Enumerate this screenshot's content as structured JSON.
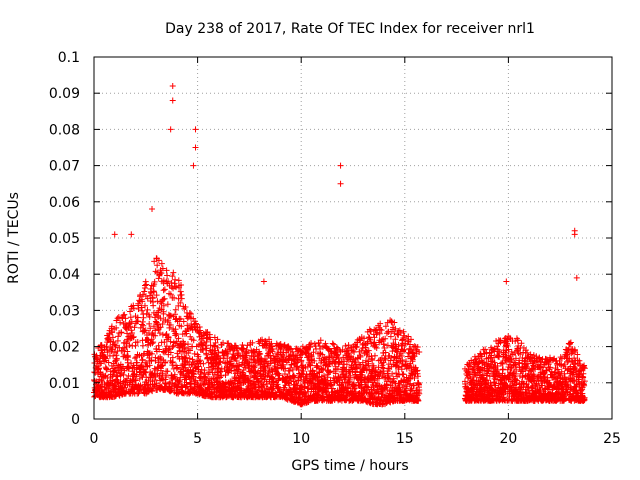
{
  "chart_data": {
    "type": "scatter",
    "title": "Day 238 of 2017, Rate Of TEC Index for receiver nrl1",
    "xlabel": "GPS time / hours",
    "ylabel": "ROTI / TECUs",
    "xlim": [
      0,
      25
    ],
    "ylim": [
      0,
      0.1
    ],
    "xticks": [
      0,
      5,
      10,
      15,
      20,
      25
    ],
    "yticks": [
      0,
      0.01,
      0.02,
      0.03,
      0.04,
      0.05,
      0.06,
      0.07,
      0.08,
      0.09,
      0.1
    ],
    "grid": true,
    "marker": "+",
    "series_color": "#ff0000",
    "data_gap_hours": [
      15.7,
      17.9
    ],
    "notable_points": [
      {
        "x": 3.8,
        "y": 0.092
      },
      {
        "x": 3.8,
        "y": 0.088
      },
      {
        "x": 3.7,
        "y": 0.08
      },
      {
        "x": 4.9,
        "y": 0.08
      },
      {
        "x": 4.9,
        "y": 0.075
      },
      {
        "x": 4.8,
        "y": 0.07
      },
      {
        "x": 11.9,
        "y": 0.07
      },
      {
        "x": 11.9,
        "y": 0.065
      },
      {
        "x": 2.8,
        "y": 0.058
      },
      {
        "x": 23.2,
        "y": 0.052
      },
      {
        "x": 23.2,
        "y": 0.051
      },
      {
        "x": 1.0,
        "y": 0.051
      },
      {
        "x": 1.8,
        "y": 0.051
      },
      {
        "x": 23.3,
        "y": 0.039
      },
      {
        "x": 19.9,
        "y": 0.038
      },
      {
        "x": 8.2,
        "y": 0.038
      },
      {
        "x": 4.2,
        "y": 0.037
      }
    ],
    "envelope": [
      [
        0.0,
        0.006,
        0.018
      ],
      [
        0.5,
        0.006,
        0.022
      ],
      [
        1.0,
        0.006,
        0.027
      ],
      [
        1.5,
        0.007,
        0.03
      ],
      [
        2.0,
        0.007,
        0.033
      ],
      [
        2.5,
        0.007,
        0.038
      ],
      [
        3.0,
        0.008,
        0.045
      ],
      [
        3.5,
        0.008,
        0.045
      ],
      [
        4.0,
        0.007,
        0.04
      ],
      [
        4.5,
        0.007,
        0.032
      ],
      [
        5.0,
        0.007,
        0.027
      ],
      [
        5.5,
        0.006,
        0.024
      ],
      [
        6.0,
        0.006,
        0.022
      ],
      [
        6.5,
        0.006,
        0.021
      ],
      [
        7.0,
        0.006,
        0.021
      ],
      [
        7.5,
        0.006,
        0.021
      ],
      [
        8.0,
        0.006,
        0.022
      ],
      [
        8.5,
        0.006,
        0.022
      ],
      [
        9.0,
        0.006,
        0.021
      ],
      [
        9.5,
        0.005,
        0.02
      ],
      [
        10.0,
        0.004,
        0.02
      ],
      [
        10.5,
        0.005,
        0.021
      ],
      [
        11.0,
        0.005,
        0.022
      ],
      [
        11.5,
        0.005,
        0.021
      ],
      [
        12.0,
        0.005,
        0.02
      ],
      [
        12.5,
        0.005,
        0.021
      ],
      [
        13.0,
        0.005,
        0.023
      ],
      [
        13.5,
        0.004,
        0.026
      ],
      [
        14.0,
        0.004,
        0.028
      ],
      [
        14.5,
        0.005,
        0.027
      ],
      [
        15.0,
        0.005,
        0.024
      ],
      [
        15.6,
        0.005,
        0.02
      ],
      [
        18.0,
        0.005,
        0.016
      ],
      [
        18.5,
        0.005,
        0.018
      ],
      [
        19.0,
        0.005,
        0.02
      ],
      [
        19.5,
        0.005,
        0.022
      ],
      [
        20.0,
        0.005,
        0.024
      ],
      [
        20.5,
        0.005,
        0.022
      ],
      [
        21.0,
        0.005,
        0.019
      ],
      [
        21.5,
        0.005,
        0.017
      ],
      [
        22.0,
        0.005,
        0.017
      ],
      [
        22.5,
        0.005,
        0.017
      ],
      [
        23.0,
        0.005,
        0.022
      ],
      [
        23.5,
        0.005,
        0.016
      ],
      [
        23.7,
        0.005,
        0.015
      ]
    ]
  }
}
